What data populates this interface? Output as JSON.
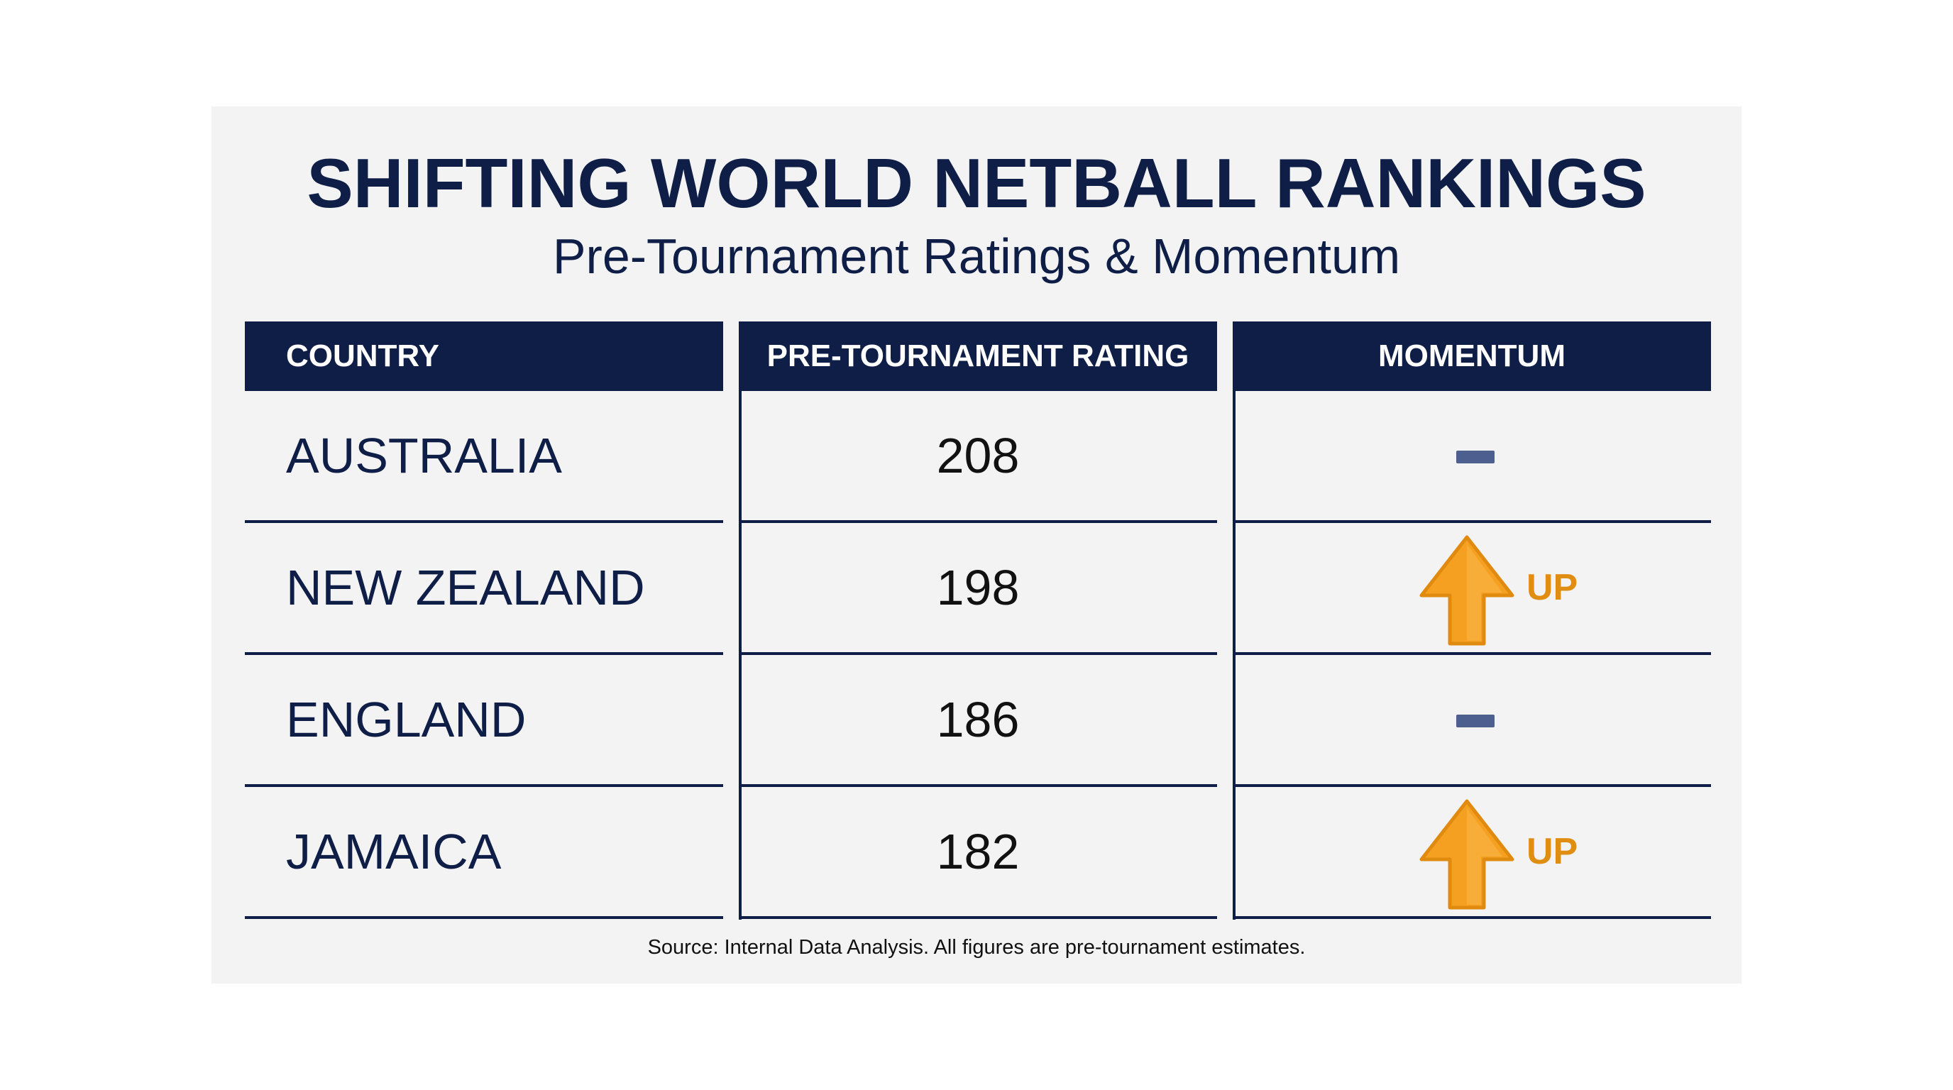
{
  "chart_data": {
    "type": "table",
    "title": "SHIFTING WORLD NETBALL RANKINGS",
    "subtitle": "Pre-Tournament Ratings & Momentum",
    "columns": [
      "COUNTRY",
      "PRE-TOURNAMENT RATING",
      "MOMENTUM"
    ],
    "rows": [
      {
        "country": "AUSTRALIA",
        "rating": 208,
        "momentum": "flat",
        "momentum_label": ""
      },
      {
        "country": "NEW ZEALAND",
        "rating": 198,
        "momentum": "up",
        "momentum_label": "UP"
      },
      {
        "country": "ENGLAND",
        "rating": 186,
        "momentum": "flat",
        "momentum_label": ""
      },
      {
        "country": "JAMAICA",
        "rating": 182,
        "momentum": "up",
        "momentum_label": "UP"
      }
    ],
    "source": "Source: Internal Data Analysis. All figures are pre-tournament estimates.",
    "colors": {
      "header_bg": "#0f1e47",
      "text": "#0f1e47",
      "flat_marker": "#4d5f8f",
      "up_arrow": "#f5a020",
      "up_label": "#e08e12"
    }
  }
}
